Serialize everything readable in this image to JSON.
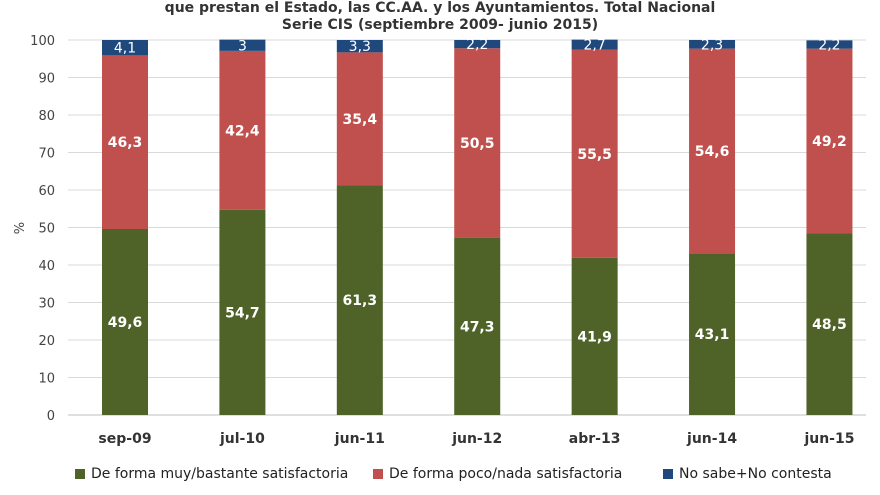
{
  "chart_data": {
    "type": "bar",
    "stacked": true,
    "title": "que prestan el Estado, las CC.AA. y los Ayuntamientos. Total Nacional",
    "subtitle": "Serie CIS (septiembre 2009- junio 2015)",
    "xlabel": "",
    "ylabel": "%",
    "ylim": [
      0,
      100
    ],
    "yticks": [
      0,
      10,
      20,
      30,
      40,
      50,
      60,
      70,
      80,
      90,
      100
    ],
    "grid": true,
    "legend": "bottom",
    "categories": [
      "sep-09",
      "jul-10",
      "jun-11",
      "jun-12",
      "abr-13",
      "jun-14",
      "jun-15"
    ],
    "series": [
      {
        "name": "De forma muy/bastante satisfactoria",
        "color": "#4f6228",
        "values": [
          49.6,
          54.7,
          61.3,
          47.3,
          41.9,
          43.1,
          48.5
        ],
        "labels": [
          "49,6",
          "54,7",
          "61,3",
          "47,3",
          "41,9",
          "43,1",
          "48,5"
        ]
      },
      {
        "name": "De forma poco/nada satisfactoria",
        "color": "#c0504d",
        "values": [
          46.3,
          42.4,
          35.4,
          50.5,
          55.5,
          54.6,
          49.2
        ],
        "labels": [
          "46,3",
          "42,4",
          "35,4",
          "50,5",
          "55,5",
          "54,6",
          "49,2"
        ]
      },
      {
        "name": "No sabe+No contesta",
        "color": "#1f497d",
        "values": [
          4.1,
          3,
          3.3,
          2.2,
          2.7,
          2.3,
          2.2
        ],
        "labels": [
          "4,1",
          "3",
          "3,3",
          "2,2",
          "2,7",
          "2,3",
          "2,2"
        ]
      }
    ]
  }
}
